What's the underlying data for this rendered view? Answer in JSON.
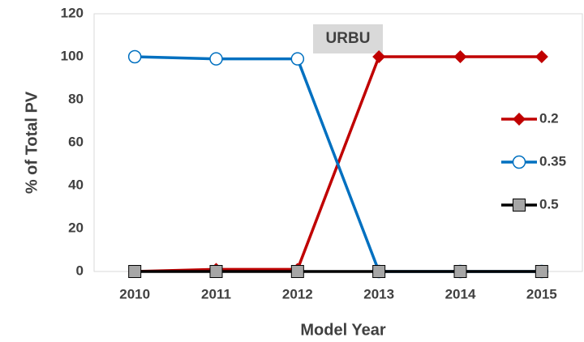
{
  "chart_data": {
    "type": "line",
    "title": "URBU",
    "x_label": "Model Year",
    "y_label": "% of Total PV",
    "categories": [
      "2010",
      "2011",
      "2012",
      "2013",
      "2014",
      "2015"
    ],
    "series": [
      {
        "name": "0.2",
        "color": "#c00000",
        "marker": "diamond",
        "values": [
          0,
          1,
          1,
          100,
          100,
          100
        ]
      },
      {
        "name": "0.35",
        "color": "#0070c0",
        "marker": "open-circle",
        "values": [
          100,
          99,
          99,
          0,
          0,
          0
        ]
      },
      {
        "name": "0.5",
        "color": "#000000",
        "marker": "square",
        "values": [
          0,
          0,
          0,
          0,
          0,
          0
        ]
      }
    ],
    "ylim": [
      0,
      120
    ],
    "yticks": [
      0,
      20,
      40,
      60,
      80,
      100,
      120
    ],
    "grid": false,
    "legend": "right"
  }
}
